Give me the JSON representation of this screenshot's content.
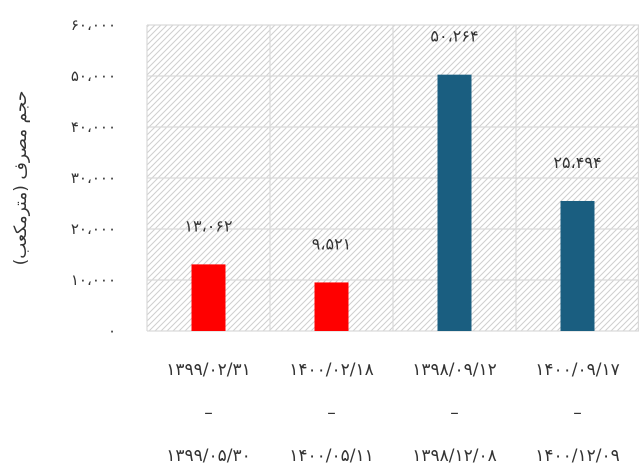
{
  "chart_data": {
    "type": "bar",
    "title": "",
    "xlabel": "",
    "ylabel": "حجم مصرف (مترمکعب)",
    "ylim": [
      0,
      60000
    ],
    "yticks": [
      0,
      10000,
      20000,
      30000,
      40000,
      50000,
      60000
    ],
    "ytick_labels": [
      "۰",
      "۱۰،۰۰۰",
      "۲۰،۰۰۰",
      "۳۰،۰۰۰",
      "۴۰،۰۰۰",
      "۵۰،۰۰۰",
      "۶۰،۰۰۰"
    ],
    "grid": true,
    "legend": "none",
    "categories": [
      {
        "line1": "۱۳۹۹/۰۲/۳۱",
        "line2": "–",
        "line3": "۱۳۹۹/۰۵/۳۰"
      },
      {
        "line1": "۱۴۰۰/۰۲/۱۸",
        "line2": "–",
        "line3": "۱۴۰۰/۰۵/۱۱"
      },
      {
        "line1": "۱۳۹۸/۰۹/۱۲",
        "line2": "–",
        "line3": "۱۳۹۸/۱۲/۰۸"
      },
      {
        "line1": "۱۴۰۰/۰۹/۱۷",
        "line2": "–",
        "line3": "۱۴۰۰/۱۲/۰۹"
      }
    ],
    "values": [
      13062,
      9521,
      50264,
      25494
    ],
    "data_labels": [
      "۱۳،۰۶۲",
      "۹،۵۲۱",
      "۵۰،۲۶۴",
      "۲۵،۴۹۴"
    ],
    "bar_colors": [
      "#ff0000",
      "#ff0000",
      "#1a5e80",
      "#1a5e80"
    ]
  }
}
